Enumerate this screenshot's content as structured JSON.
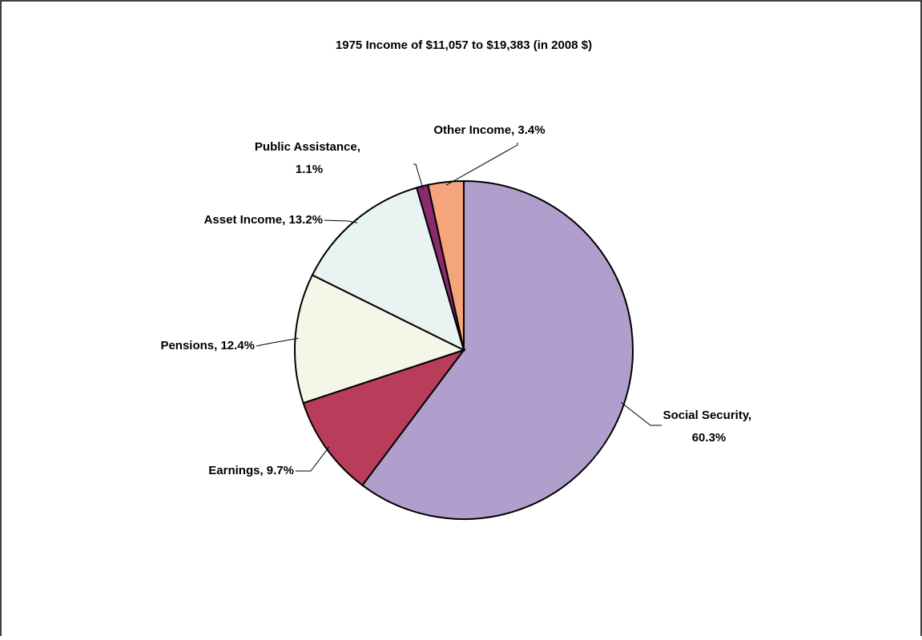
{
  "chart_data": {
    "type": "pie",
    "title": "1975 Income of $11,057 to $19,383 (in 2008 $)",
    "values": [
      60.3,
      9.7,
      12.4,
      13.2,
      1.1,
      3.4
    ],
    "value_labels": [
      "Social Security, 60.3%",
      "Earnings, 9.7%",
      "Pensions, 12.4%",
      "Asset Income, 13.2%",
      "Public Assistance, 1.1%",
      "Other Income, 3.4%"
    ],
    "colors": [
      "#b09fcc",
      "#b93c5a",
      "#f4f7e8",
      "#e8f4f2",
      "#8b2a6e",
      "#f4a57c"
    ]
  }
}
